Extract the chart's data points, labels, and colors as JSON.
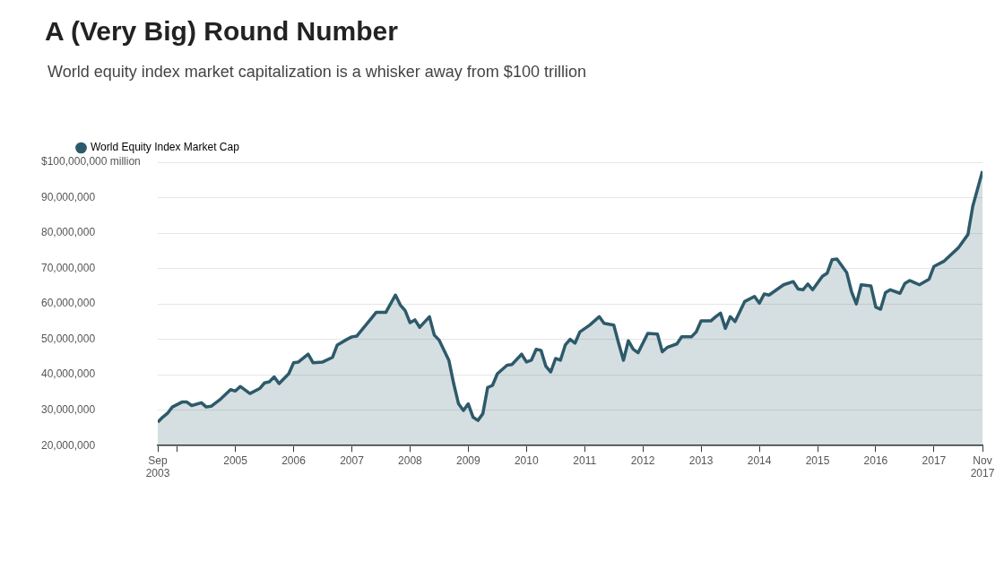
{
  "chart_data": {
    "type": "area",
    "title": "A (Very Big) Round Number",
    "subtitle": "World equity index market capitalization is a whisker away from $100 trillion",
    "legend": "top left",
    "grid": "y",
    "x": [
      "2003-09",
      "2003-10",
      "2003-11",
      "2003-12",
      "2004-02",
      "2004-03",
      "2004-04",
      "2004-06",
      "2004-07",
      "2004-08",
      "2004-10",
      "2004-12",
      "2005-01",
      "2005-02",
      "2005-04",
      "2005-06",
      "2005-07",
      "2005-08",
      "2005-09",
      "2005-10",
      "2005-12",
      "2006-01",
      "2006-02",
      "2006-04",
      "2006-05",
      "2006-07",
      "2006-09",
      "2006-10",
      "2006-12",
      "2007-01",
      "2007-02",
      "2007-05",
      "2007-06",
      "2007-08",
      "2007-10",
      "2007-11",
      "2007-12",
      "2008-01",
      "2008-02",
      "2008-03",
      "2008-05",
      "2008-06",
      "2008-07",
      "2008-09",
      "2008-10",
      "2008-11",
      "2008-12",
      "2009-01",
      "2009-02",
      "2009-03",
      "2009-04",
      "2009-05",
      "2009-06",
      "2009-07",
      "2009-09",
      "2009-10",
      "2009-12",
      "2010-01",
      "2010-02",
      "2010-03",
      "2010-04",
      "2010-05",
      "2010-06",
      "2010-07",
      "2010-08",
      "2010-09",
      "2010-10",
      "2010-11",
      "2010-12",
      "2011-02",
      "2011-04",
      "2011-05",
      "2011-07",
      "2011-08",
      "2011-09",
      "2011-10",
      "2011-11",
      "2011-12",
      "2012-02",
      "2012-04",
      "2012-05",
      "2012-06",
      "2012-08",
      "2012-09",
      "2012-11",
      "2012-12",
      "2013-01",
      "2013-03",
      "2013-04",
      "2013-05",
      "2013-06",
      "2013-07",
      "2013-08",
      "2013-10",
      "2013-12",
      "2014-01",
      "2014-02",
      "2014-03",
      "2014-06",
      "2014-08",
      "2014-09",
      "2014-10",
      "2014-11",
      "2014-12",
      "2015-02",
      "2015-03",
      "2015-04",
      "2015-05",
      "2015-07",
      "2015-08",
      "2015-09",
      "2015-10",
      "2015-12",
      "2016-01",
      "2016-02",
      "2016-03",
      "2016-04",
      "2016-06",
      "2016-07",
      "2016-08",
      "2016-10",
      "2016-12",
      "2017-01",
      "2017-03",
      "2017-06",
      "2017-08",
      "2017-09",
      "2017-11"
    ],
    "series": [
      {
        "name": "World Equity Index Market Cap",
        "color": "#2d5a6a",
        "values": [
          26600000,
          28000000,
          29100000,
          30900000,
          32300000,
          32300000,
          31300000,
          32100000,
          30900000,
          31100000,
          33200000,
          35800000,
          35400000,
          36700000,
          34700000,
          36100000,
          37700000,
          38000000,
          39400000,
          37500000,
          40300000,
          43400000,
          43600000,
          45800000,
          43400000,
          43600000,
          44900000,
          48400000,
          50000000,
          50700000,
          50900000,
          55900000,
          57600000,
          57600000,
          62500000,
          59700000,
          58100000,
          54700000,
          55500000,
          53400000,
          56400000,
          51200000,
          49800000,
          44100000,
          37500000,
          31800000,
          29900000,
          31800000,
          28000000,
          27100000,
          29000000,
          36400000,
          37000000,
          40300000,
          42700000,
          42900000,
          45800000,
          43600000,
          44100000,
          47200000,
          46900000,
          42400000,
          40800000,
          44600000,
          44100000,
          48400000,
          50000000,
          48900000,
          52100000,
          54000000,
          56400000,
          54500000,
          54000000,
          48900000,
          44100000,
          49600000,
          47200000,
          46200000,
          51700000,
          51500000,
          46500000,
          47700000,
          48700000,
          50700000,
          50700000,
          52100000,
          55200000,
          55200000,
          56400000,
          57400000,
          53100000,
          56400000,
          55000000,
          60700000,
          62100000,
          60200000,
          62800000,
          62500000,
          65400000,
          66300000,
          64200000,
          64000000,
          65600000,
          64000000,
          67800000,
          68700000,
          72500000,
          72700000,
          68900000,
          63500000,
          60000000,
          65400000,
          65100000,
          59100000,
          58500000,
          63200000,
          64000000,
          63000000,
          65800000,
          66600000,
          65400000,
          67000000,
          70600000,
          72000000,
          75800000,
          79600000,
          87600000,
          97500000
        ]
      }
    ],
    "xlim": [
      "2003-09",
      "2017-11"
    ],
    "xticks": [
      {
        "value": "2003-09",
        "label": "Sep 2003"
      },
      {
        "value": "2004-01",
        "label": null
      },
      {
        "value": "2005",
        "label": "2005"
      },
      {
        "value": "2006",
        "label": "2006"
      },
      {
        "value": "2007",
        "label": "2007"
      },
      {
        "value": "2008",
        "label": "2008"
      },
      {
        "value": "2009",
        "label": "2009"
      },
      {
        "value": "2010",
        "label": "2010"
      },
      {
        "value": "2011",
        "label": "2011"
      },
      {
        "value": "2012",
        "label": "2012"
      },
      {
        "value": "2013",
        "label": "2013"
      },
      {
        "value": "2014",
        "label": "2014"
      },
      {
        "value": "2015",
        "label": "2015"
      },
      {
        "value": "2016",
        "label": "2016"
      },
      {
        "value": "2017",
        "label": "2017"
      },
      {
        "value": "2017-11",
        "label": "Nov 2017"
      }
    ],
    "ylim": [
      20000000,
      100000000
    ],
    "yticks": [
      {
        "value": 20000000,
        "label": "20,000,000"
      },
      {
        "value": 30000000,
        "label": "30,000,000"
      },
      {
        "value": 40000000,
        "label": "40,000,000"
      },
      {
        "value": 50000000,
        "label": "50,000,000"
      },
      {
        "value": 60000000,
        "label": "60,000,000"
      },
      {
        "value": 70000000,
        "label": "70,000,000"
      },
      {
        "value": 80000000,
        "label": "80,000,000"
      },
      {
        "value": 90000000,
        "label": "90,000,000"
      },
      {
        "value": 100000000,
        "label": "$100,000,000 million"
      }
    ]
  }
}
